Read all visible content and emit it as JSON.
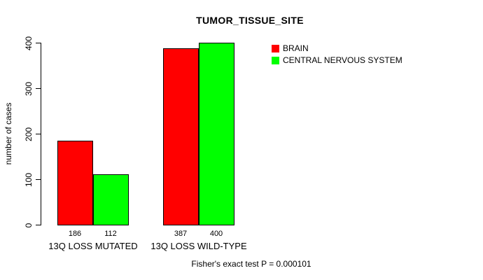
{
  "figure": {
    "title": "TUMOR_TISSUE_SITE",
    "footer": "Fisher's exact test P = 0.000101"
  },
  "chart_data": {
    "type": "bar",
    "title": "TUMOR_TISSUE_SITE",
    "xlabel": "",
    "ylabel": "number of cases",
    "ylim": [
      0,
      400
    ],
    "yticks": [
      "0",
      "100",
      "200",
      "300",
      "400"
    ],
    "grid": false,
    "legend_position": "right-of-plot, top",
    "categories": [
      "13Q LOSS MUTATED",
      "13Q LOSS WILD-TYPE"
    ],
    "series": [
      {
        "name": "BRAIN",
        "color": "#ff0000",
        "values": [
          186,
          387
        ]
      },
      {
        "name": "CENTRAL NERVOUS SYSTEM",
        "color": "#00ff00",
        "values": [
          112,
          400
        ]
      }
    ],
    "bar_labels": [
      "186",
      "112",
      "387",
      "400"
    ],
    "annotation": "Fisher's exact test P = 0.000101"
  }
}
